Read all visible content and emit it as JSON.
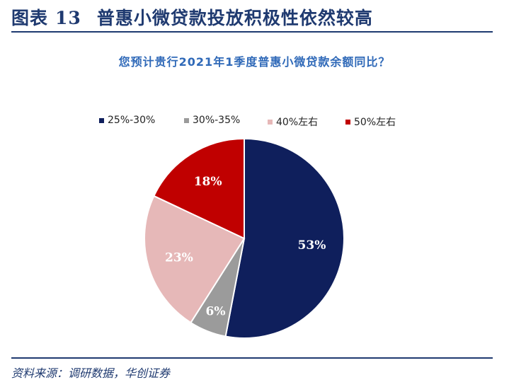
{
  "figure": {
    "label": "图表",
    "number": "13",
    "title": "普惠小微贷款投放积极性依然较高",
    "source": "资料来源：调研数据，华创证券"
  },
  "chart_data": {
    "type": "pie",
    "title": "您预计贵行2021年1季度普惠小微贷款余额同比？",
    "categories": [
      "25%-30%",
      "30%-35%",
      "40%左右",
      "50%左右"
    ],
    "values": [
      53,
      6,
      23,
      18
    ],
    "data_labels": [
      "53%",
      "6%",
      "23%",
      "18%"
    ],
    "colors": [
      "#0f1f5c",
      "#9b9b9b",
      "#e6b8b8",
      "#c00000"
    ],
    "legend_position": "top",
    "start_angle": "12-o'clock",
    "direction": "clockwise"
  }
}
